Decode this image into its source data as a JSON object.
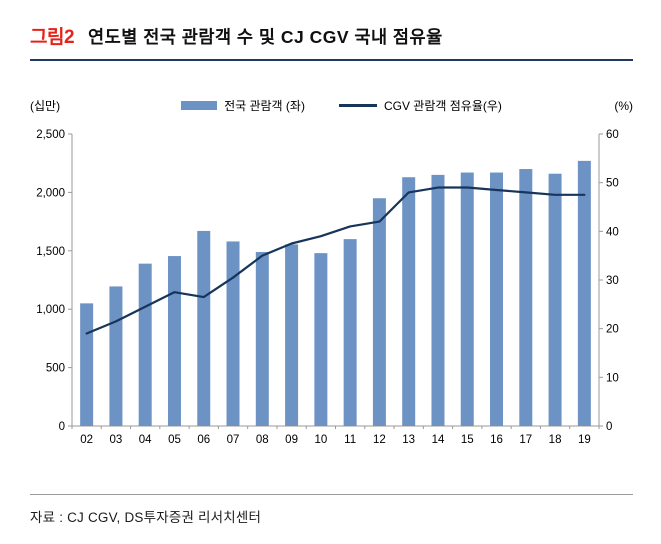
{
  "header": {
    "figure_label": "그림2",
    "title": "연도별 전국 관람객 수 및 CJ CGV 국내 점유율"
  },
  "chart_data": {
    "type": "bar",
    "combo": "bar+line",
    "title": "연도별 전국 관람객 수 및 CJ CGV 국내 점유율",
    "categories": [
      "02",
      "03",
      "04",
      "05",
      "06",
      "07",
      "08",
      "09",
      "10",
      "11",
      "12",
      "13",
      "14",
      "15",
      "16",
      "17",
      "18",
      "19"
    ],
    "series": [
      {
        "name": "전국 관람객 (좌)",
        "type": "bar",
        "axis": "left",
        "values": [
          1050,
          1195,
          1390,
          1455,
          1670,
          1580,
          1490,
          1555,
          1480,
          1600,
          1950,
          2130,
          2150,
          2170,
          2170,
          2200,
          2160,
          2270
        ]
      },
      {
        "name": "CGV 관람객 점유율(우)",
        "type": "line",
        "axis": "right",
        "values": [
          19,
          21.5,
          24.5,
          27.5,
          26.5,
          30.5,
          35,
          37.5,
          39,
          41,
          42,
          48,
          49,
          49,
          48.5,
          48,
          47.5,
          47.5
        ]
      }
    ],
    "left_axis": {
      "unit_label": "(십만)",
      "min": 0,
      "max": 2500,
      "tick_labels": [
        "0",
        "500",
        "1,000",
        "1,500",
        "2,000",
        "2,500"
      ]
    },
    "right_axis": {
      "unit_label": "(%)",
      "min": 0,
      "max": 60,
      "tick_labels": [
        "0",
        "10",
        "20",
        "30",
        "40",
        "50",
        "60"
      ]
    },
    "legend_position": "top",
    "grid": false,
    "colors": {
      "bar": "#6d93c5",
      "line": "#17355c",
      "axis": "#9a9a9a",
      "accent_red": "#e5231b",
      "header_rule": "#1f3864"
    }
  },
  "footer": {
    "source": "자료 : CJ CGV, DS투자증권 리서치센터"
  }
}
